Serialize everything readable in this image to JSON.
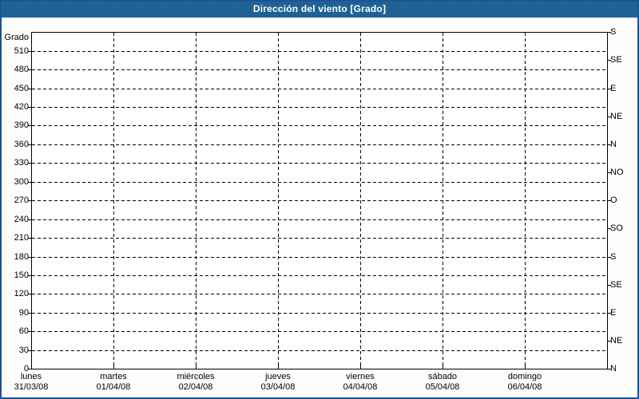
{
  "window": {
    "title": "Dirección del viento [Grado]"
  },
  "chart_data": {
    "type": "line",
    "title": "Dirección del viento [Grado]",
    "ylabel": "Grado",
    "xlabel": "",
    "ylim": [
      0,
      540
    ],
    "grid": "dashed",
    "legend": "none",
    "y_left_ticks": [
      0,
      30,
      60,
      90,
      120,
      150,
      180,
      210,
      240,
      270,
      300,
      330,
      360,
      390,
      420,
      450,
      480,
      510
    ],
    "y_right_ticks": [
      {
        "deg": 0,
        "label": "N"
      },
      {
        "deg": 45,
        "label": "NE"
      },
      {
        "deg": 90,
        "label": "E"
      },
      {
        "deg": 135,
        "label": "SE"
      },
      {
        "deg": 180,
        "label": "S"
      },
      {
        "deg": 225,
        "label": "SO"
      },
      {
        "deg": 270,
        "label": "O"
      },
      {
        "deg": 315,
        "label": "NO"
      },
      {
        "deg": 360,
        "label": "N"
      },
      {
        "deg": 405,
        "label": "NE"
      },
      {
        "deg": 450,
        "label": "E"
      },
      {
        "deg": 495,
        "label": "SE"
      },
      {
        "deg": 540,
        "label": "S"
      }
    ],
    "x_categories": [
      {
        "day": "lunes",
        "date": "31/03/08"
      },
      {
        "day": "martes",
        "date": "01/04/08"
      },
      {
        "day": "miércoles",
        "date": "02/04/08"
      },
      {
        "day": "jueves",
        "date": "03/04/08"
      },
      {
        "day": "viernes",
        "date": "04/04/08"
      },
      {
        "day": "sábado",
        "date": "05/04/08"
      },
      {
        "day": "domingo",
        "date": "06/04/08"
      }
    ],
    "series": []
  },
  "colors": {
    "titlebar_bg": "#21669c",
    "titlebar_text": "#ffffff",
    "window_border": "#1b5490",
    "plot_border": "#000000",
    "grid": "#000000",
    "label_text": "#000000",
    "background": "#ffffff"
  }
}
